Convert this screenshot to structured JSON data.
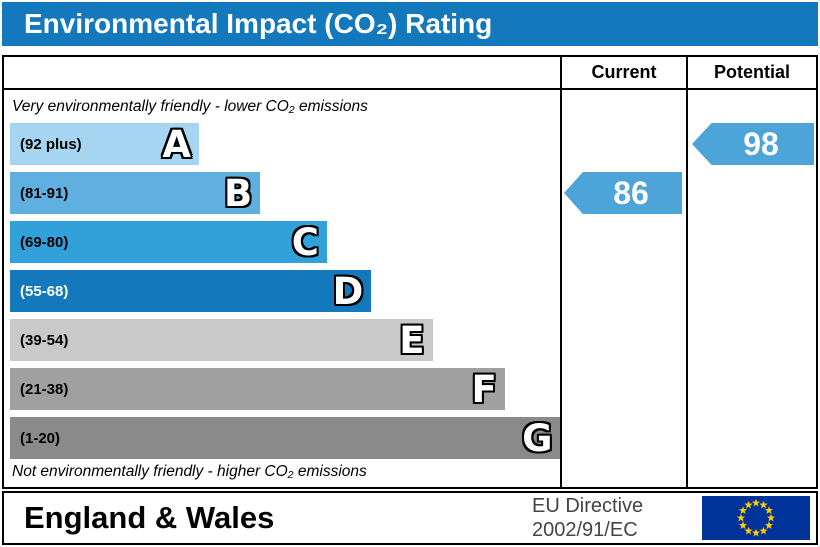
{
  "title": "Environmental Impact (CO₂) Rating",
  "header": {
    "current": "Current",
    "potential": "Potential"
  },
  "chart_data": {
    "type": "bar",
    "title": "Environmental Impact (CO₂) Rating",
    "scale_note_top": "Very environmentally friendly - lower CO₂ emissions",
    "scale_note_bottom": "Not environmentally friendly - higher CO₂ emissions",
    "bands": [
      {
        "letter": "A",
        "range": "(92 plus)",
        "color": "#a5d5f0",
        "range_color": "#000000",
        "width_pct": 34
      },
      {
        "letter": "B",
        "range": "(81-91)",
        "color": "#5fb0e1",
        "range_color": "#000000",
        "width_pct": 45
      },
      {
        "letter": "C",
        "range": "(69-80)",
        "color": "#33a1d9",
        "range_color": "#000000",
        "width_pct": 57
      },
      {
        "letter": "D",
        "range": "(55-68)",
        "color": "#1478bc",
        "range_color": "#ffffff",
        "width_pct": 65
      },
      {
        "letter": "E",
        "range": "(39-54)",
        "color": "#c9c9c9",
        "range_color": "#000000",
        "width_pct": 76
      },
      {
        "letter": "F",
        "range": "(21-38)",
        "color": "#a0a0a0",
        "range_color": "#000000",
        "width_pct": 89
      },
      {
        "letter": "G",
        "range": "(1-20)",
        "color": "#8a8a8a",
        "range_color": "#000000",
        "width_pct": 99
      }
    ],
    "current": {
      "value": 86,
      "band_letter": "B"
    },
    "potential": {
      "value": 98,
      "band_letter": "A"
    },
    "arrow_color": "#4da4d9",
    "axis_range_hint": [
      1,
      100
    ],
    "legend_position": "none"
  },
  "footer": {
    "region": "England & Wales",
    "directive_line1": "EU Directive",
    "directive_line2": "2002/91/EC"
  },
  "colors": {
    "title_bg": "#1478bc",
    "title_text": "#ffffff",
    "eu_flag_blue": "#003399",
    "eu_flag_star": "#ffcc00"
  }
}
